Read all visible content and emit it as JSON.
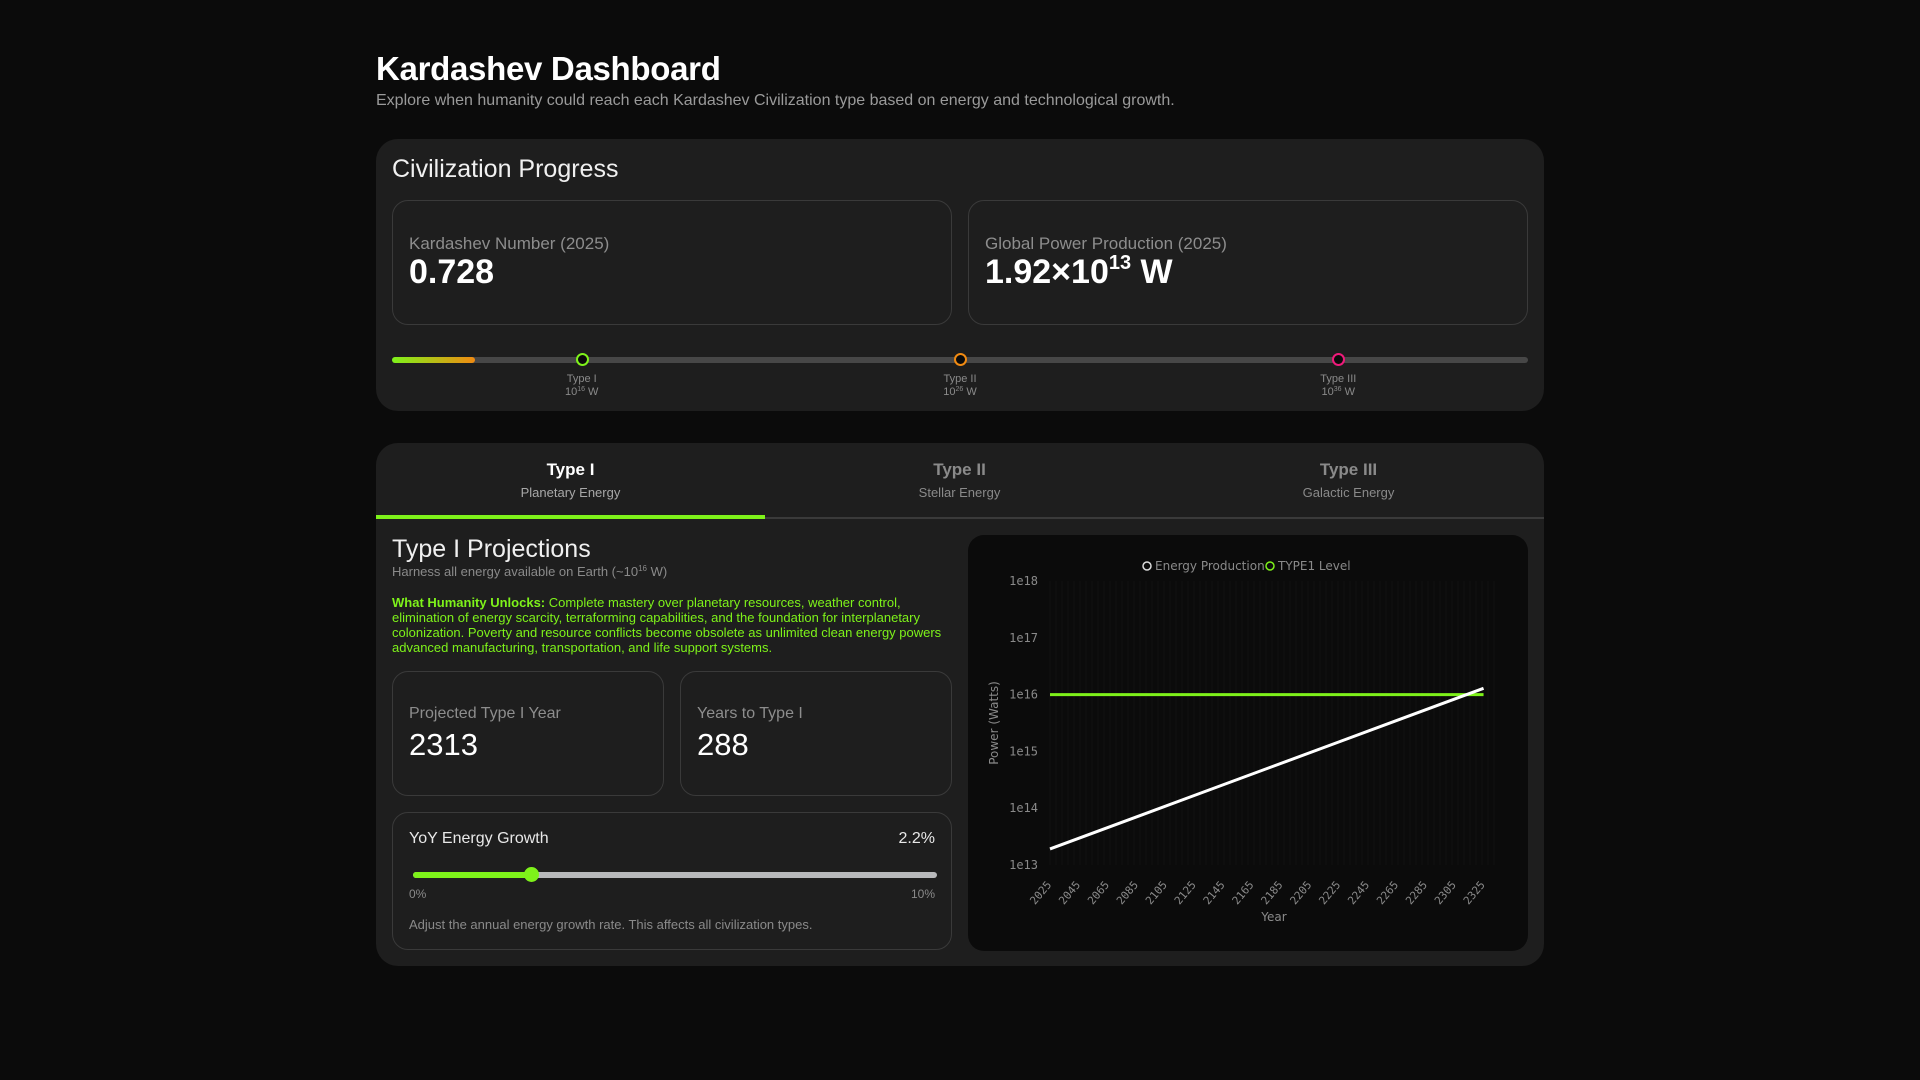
{
  "header": {
    "title": "Kardashev Dashboard",
    "subtitle": "Explore when humanity could reach each Kardashev Civilization type based on energy and technological growth."
  },
  "progress": {
    "title": "Civilization Progress",
    "kardashev_card": {
      "label": "Kardashev Number (2025)",
      "value": "0.728"
    },
    "power_card": {
      "label": "Global Power Production (2025)",
      "value_mantissa": "1.92×10",
      "value_exp": "13",
      "value_unit": " W"
    },
    "bar": {
      "fill_percent": 7.3,
      "markers": [
        {
          "name": "Type I",
          "base": "10",
          "exp": "16",
          "unit": " W",
          "position_percent": 16.7,
          "color": "#7ef21a"
        },
        {
          "name": "Type II",
          "base": "10",
          "exp": "26",
          "unit": " W",
          "position_percent": 50.0,
          "color": "#f08a12"
        },
        {
          "name": "Type III",
          "base": "10",
          "exp": "36",
          "unit": " W",
          "position_percent": 83.3,
          "color": "#ee1a7a"
        }
      ]
    }
  },
  "tabs": [
    {
      "name": "Type I",
      "sub": "Planetary Energy",
      "active": true
    },
    {
      "name": "Type II",
      "sub": "Stellar Energy",
      "active": false
    },
    {
      "name": "Type III",
      "sub": "Galactic Energy",
      "active": false
    }
  ],
  "projection": {
    "title": "Type I Projections",
    "subtitle_prefix": "Harness all energy available on Earth (~10",
    "subtitle_exp": "16",
    "subtitle_suffix": " W)",
    "unlocks_label": "What Humanity Unlocks:",
    "unlocks_text": " Complete mastery over planetary resources, weather control, elimination of energy scarcity, terraforming capabilities, and the foundation for interplanetary colonization. Poverty and resource conflicts become obsolete as unlimited clean energy powers advanced manufacturing, transportation, and life support systems.",
    "year_card": {
      "label": "Projected Type I Year",
      "value": "2313"
    },
    "years_card": {
      "label": "Years to Type I",
      "value": "288"
    },
    "growth": {
      "label": "YoY Energy Growth",
      "value": "2.2%",
      "min_label": "0%",
      "max_label": "10%",
      "help": "Adjust the annual energy growth rate. This affects all civilization types."
    }
  },
  "accent_colors": {
    "green": "#7ef21a",
    "orange": "#f08a12",
    "pink": "#ee1a7a"
  },
  "chart_data": {
    "type": "line",
    "title": "",
    "xlabel": "Year",
    "ylabel": "Power (Watts)",
    "y_scale": "log",
    "ylim": [
      10000000000000.0,
      1e+18
    ],
    "y_ticks": [
      "1e18",
      "1e17",
      "1e16",
      "1e15",
      "1e14",
      "1e13"
    ],
    "x_ticks": [
      "2025",
      "2045",
      "2065",
      "2085",
      "2105",
      "2125",
      "2145",
      "2165",
      "2185",
      "2205",
      "2225",
      "2245",
      "2265",
      "2285",
      "2305",
      "2325"
    ],
    "legend": [
      "Energy Production",
      "TYPE1 Level"
    ],
    "legend_position": "top",
    "grid": false,
    "series": [
      {
        "name": "Energy Production",
        "color": "#ffffff",
        "x": [
          2025,
          2125,
          2225,
          2325
        ],
        "values": [
          19200000000000.0,
          168000000000000.0,
          1470000000000000.0,
          1.29e+16
        ]
      },
      {
        "name": "TYPE1 Level",
        "color": "#7ef21a",
        "x": [
          2025,
          2325
        ],
        "values": [
          1e+16,
          1e+16
        ]
      }
    ]
  }
}
